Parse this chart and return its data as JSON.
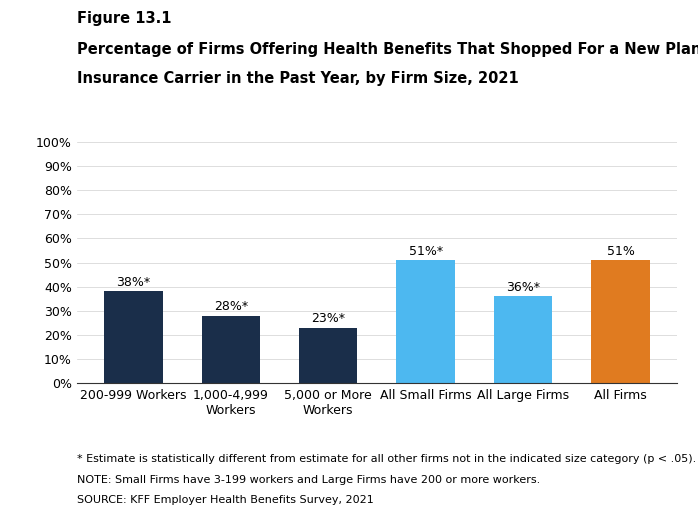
{
  "categories": [
    "200-999 Workers",
    "1,000-4,999\nWorkers",
    "5,000 or More\nWorkers",
    "All Small Firms",
    "All Large Firms",
    "All Firms"
  ],
  "values": [
    38,
    28,
    23,
    51,
    36,
    51
  ],
  "labels": [
    "38%*",
    "28%*",
    "23%*",
    "51%*",
    "36%*",
    "51%"
  ],
  "bar_colors": [
    "#1a2e4a",
    "#1a2e4a",
    "#1a2e4a",
    "#4db8f0",
    "#4db8f0",
    "#e07b20"
  ],
  "figure_label": "Figure 13.1",
  "title_line1": "Percentage of Firms Offering Health Benefits That Shopped For a New Plan or Health",
  "title_line2": "Insurance Carrier in the Past Year, by Firm Size, 2021",
  "ylim": [
    0,
    100
  ],
  "yticks": [
    0,
    10,
    20,
    30,
    40,
    50,
    60,
    70,
    80,
    90,
    100
  ],
  "ytick_labels": [
    "0%",
    "10%",
    "20%",
    "30%",
    "40%",
    "50%",
    "60%",
    "70%",
    "80%",
    "90%",
    "100%"
  ],
  "footnote1": "* Estimate is statistically different from estimate for all other firms not in the indicated size category (p < .05).",
  "footnote2": "NOTE: Small Firms have 3-199 workers and Large Firms have 200 or more workers.",
  "footnote3": "SOURCE: KFF Employer Health Benefits Survey, 2021",
  "background_color": "#ffffff",
  "bar_width": 0.6,
  "label_fontsize": 9,
  "tick_fontsize": 9,
  "footnote_fontsize": 8,
  "title_fontsize": 10.5,
  "figure_label_fontsize": 10.5
}
